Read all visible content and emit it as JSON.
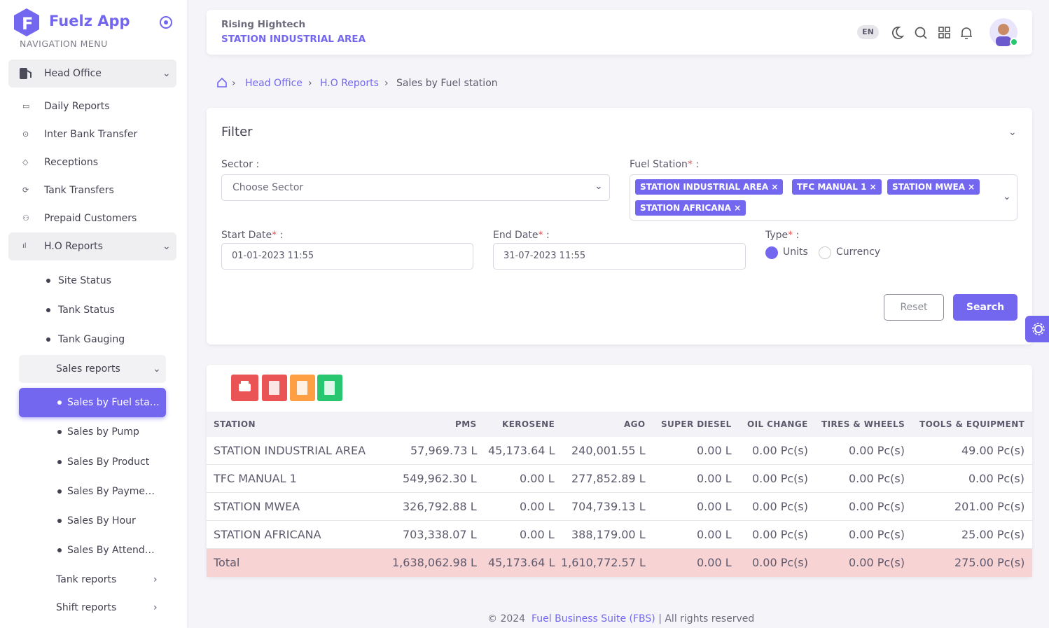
{
  "sidebar": {
    "brand": "Fuelz App",
    "menu_label": "NAVIGATION MENU",
    "group": "Head Office",
    "items": [
      "Daily Reports",
      "Inter Bank Transfer",
      "Receptions",
      "Tank Transfers",
      "Prepaid Customers"
    ],
    "ho_reports": "H.O Reports",
    "ho_items": [
      "Site Status",
      "Tank Status",
      "Tank Gauging"
    ],
    "sales_reports": "Sales reports",
    "sales_items": [
      "Sales by Fuel sta…",
      "Sales by Pump",
      "Sales By Product",
      "Sales By Payme…",
      "Sales By Hour",
      "Sales By Attend…"
    ],
    "more": [
      "Tank reports",
      "Shift reports"
    ]
  },
  "header": {
    "company": "Rising Hightech",
    "station": "STATION INDUSTRIAL AREA",
    "lang": "EN"
  },
  "breadcrumb": [
    "Head Office",
    "H.O Reports",
    "Sales by Fuel station"
  ],
  "filter": {
    "title": "Filter",
    "sector_label": "Sector :",
    "sector_placeholder": "Choose Sector",
    "station_label": {
      "text": "Fuel Station",
      "required": "*",
      "colon": " :"
    },
    "stations": [
      "STATION INDUSTRIAL AREA",
      "TFC MANUAL 1",
      "STATION MWEA",
      "STATION AFRICANA"
    ],
    "start_label": {
      "text": "Start Date",
      "required": "*",
      "colon": " :"
    },
    "start_value": "01-01-2023 11:55",
    "end_label": {
      "text": "End Date",
      "required": "*",
      "colon": " :"
    },
    "end_value": "31-07-2023 11:55",
    "type_label": {
      "text": "Type",
      "required": "*",
      "colon": " :"
    },
    "types": [
      "Units",
      "Currency"
    ],
    "reset": "Reset",
    "search": "Search"
  },
  "table": {
    "columns": [
      "STATION",
      "PMS",
      "KEROSENE",
      "AGO",
      "SUPER DIESEL",
      "OIL CHANGE",
      "TIRES & WHEELS",
      "TOOLS & EQUIPMENT"
    ],
    "rows": [
      [
        "STATION INDUSTRIAL AREA",
        "57,969.73 L",
        "45,173.64 L",
        "240,001.55 L",
        "0.00 L",
        "0.00 Pc(s)",
        "0.00 Pc(s)",
        "49.00 Pc(s)"
      ],
      [
        "TFC MANUAL 1",
        "549,962.30 L",
        "0.00 L",
        "277,852.89 L",
        "0.00 L",
        "0.00 Pc(s)",
        "0.00 Pc(s)",
        "0.00 Pc(s)"
      ],
      [
        "STATION MWEA",
        "326,792.88 L",
        "0.00 L",
        "704,739.13 L",
        "0.00 L",
        "0.00 Pc(s)",
        "0.00 Pc(s)",
        "201.00 Pc(s)"
      ],
      [
        "STATION AFRICANA",
        "703,338.07 L",
        "0.00 L",
        "388,179.00 L",
        "0.00 L",
        "0.00 Pc(s)",
        "0.00 Pc(s)",
        "25.00 Pc(s)"
      ]
    ],
    "total": [
      "Total",
      "1,638,062.98 L",
      "45,173.64 L",
      "1,610,772.57 L",
      "0.00 L",
      "0.00 Pc(s)",
      "0.00 Pc(s)",
      "275.00 Pc(s)"
    ]
  },
  "footer": {
    "copyright": "© 2024",
    "link": "Fuel Business Suite (FBS)",
    "rest": "| All rights reserved"
  }
}
